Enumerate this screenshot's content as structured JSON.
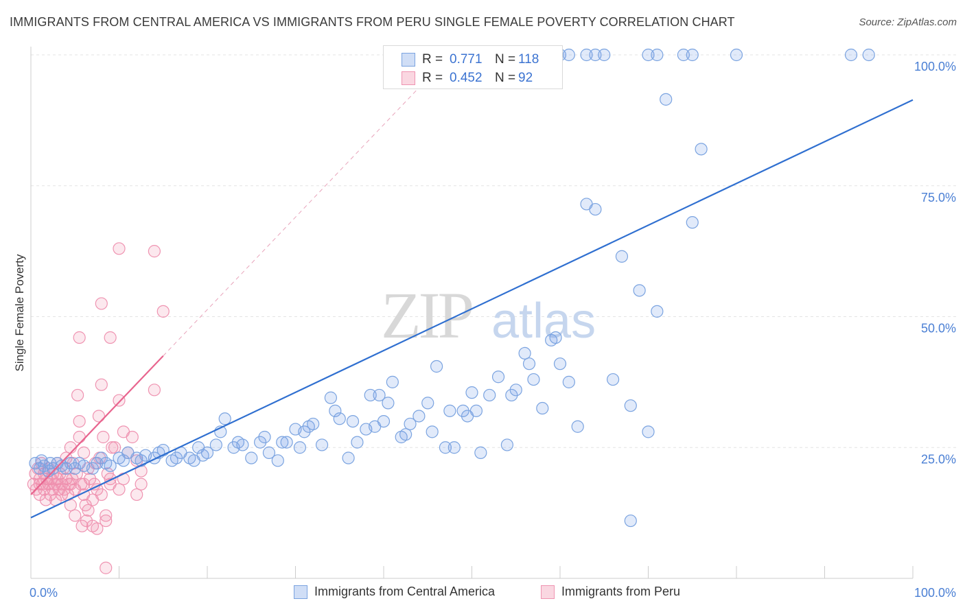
{
  "title": "IMMIGRANTS FROM CENTRAL AMERICA VS IMMIGRANTS FROM PERU SINGLE FEMALE POVERTY CORRELATION CHART",
  "source": "Source: ZipAtlas.com",
  "watermark": {
    "zip": "ZIP",
    "atlas": "atlas"
  },
  "colors": {
    "blue_fill": "rgba(120,160,230,0.22)",
    "blue_stroke": "#7aa3e0",
    "blue_line": "#2f6fd0",
    "pink_fill": "rgba(240,140,170,0.20)",
    "pink_stroke": "#ef93b1",
    "pink_line": "#e8648e",
    "tick_label": "#4a7fd4"
  },
  "legend": {
    "rows": [
      {
        "r_label": "R =",
        "r_value": "0.771",
        "n_label": "N =",
        "n_value": "118"
      },
      {
        "r_label": "R =",
        "r_value": "0.452",
        "n_label": "N =",
        "n_value": "92"
      }
    ]
  },
  "bottom_legend": {
    "blue": "Immigrants from Central America",
    "pink": "Immigrants from Peru"
  },
  "chart_data": {
    "type": "scatter",
    "xlabel": "",
    "ylabel": "Single Female Poverty",
    "xlim": [
      0,
      100
    ],
    "ylim": [
      0,
      100
    ],
    "x_tick_labels": [
      "0.0%",
      "100.0%"
    ],
    "y_tick_labels": [
      "25.0%",
      "50.0%",
      "75.0%",
      "100.0%"
    ],
    "y_ticks": [
      25,
      50,
      75,
      100
    ],
    "grid": true,
    "series": [
      {
        "name": "Immigrants from Central America",
        "color": "blue",
        "r": 0.771,
        "n": 118,
        "trend": {
          "x": [
            0,
            100
          ],
          "y": [
            11.6,
            91.4
          ]
        },
        "points": [
          [
            0.5,
            22
          ],
          [
            1,
            21
          ],
          [
            1.2,
            22.5
          ],
          [
            1.5,
            21.5
          ],
          [
            2,
            20.5
          ],
          [
            2.2,
            22
          ],
          [
            2.5,
            21
          ],
          [
            3,
            22
          ],
          [
            3.5,
            21.5
          ],
          [
            4,
            21
          ],
          [
            4.5,
            22
          ],
          [
            5,
            21
          ],
          [
            5.5,
            22
          ],
          [
            6,
            21.5
          ],
          [
            7,
            21
          ],
          [
            7.5,
            22
          ],
          [
            8,
            23
          ],
          [
            8.5,
            22
          ],
          [
            9,
            21.5
          ],
          [
            10,
            23
          ],
          [
            10.5,
            22.5
          ],
          [
            11,
            24
          ],
          [
            12,
            23
          ],
          [
            12.5,
            22.5
          ],
          [
            13,
            23.5
          ],
          [
            14,
            23
          ],
          [
            14.5,
            24
          ],
          [
            15,
            24.5
          ],
          [
            16,
            22.5
          ],
          [
            16.5,
            23
          ],
          [
            17,
            24
          ],
          [
            18,
            23
          ],
          [
            18.5,
            22.5
          ],
          [
            19,
            25
          ],
          [
            19.5,
            23.5
          ],
          [
            20,
            24
          ],
          [
            21,
            25.5
          ],
          [
            21.5,
            28
          ],
          [
            22,
            30.5
          ],
          [
            23,
            25
          ],
          [
            23.5,
            26
          ],
          [
            24,
            25.5
          ],
          [
            25,
            23
          ],
          [
            26,
            26
          ],
          [
            26.5,
            27
          ],
          [
            27,
            24
          ],
          [
            28,
            22.5
          ],
          [
            28.5,
            26
          ],
          [
            29,
            26
          ],
          [
            30,
            28.5
          ],
          [
            30.5,
            25
          ],
          [
            31,
            28
          ],
          [
            31.5,
            29
          ],
          [
            32,
            29.5
          ],
          [
            33,
            25.5
          ],
          [
            34,
            34.5
          ],
          [
            34.5,
            32
          ],
          [
            35,
            30.5
          ],
          [
            36,
            23
          ],
          [
            36.5,
            30
          ],
          [
            37,
            26
          ],
          [
            38,
            28.5
          ],
          [
            38.5,
            35
          ],
          [
            39,
            29
          ],
          [
            39.5,
            35
          ],
          [
            40,
            30
          ],
          [
            40.5,
            33.5
          ],
          [
            41,
            37.5
          ],
          [
            42,
            27
          ],
          [
            42.5,
            27.5
          ],
          [
            43,
            29.5
          ],
          [
            44,
            31
          ],
          [
            45,
            33.5
          ],
          [
            45.5,
            28
          ],
          [
            46,
            40.5
          ],
          [
            47,
            25
          ],
          [
            47.5,
            32
          ],
          [
            48,
            25
          ],
          [
            49,
            32
          ],
          [
            49.5,
            31
          ],
          [
            50,
            35.5
          ],
          [
            50.5,
            32
          ],
          [
            51,
            24
          ],
          [
            52,
            35
          ],
          [
            53,
            38.5
          ],
          [
            54,
            25.5
          ],
          [
            54.5,
            35
          ],
          [
            55,
            36
          ],
          [
            56,
            43
          ],
          [
            56.5,
            41
          ],
          [
            57,
            38
          ],
          [
            58,
            32.5
          ],
          [
            59,
            45.5
          ],
          [
            59.5,
            46
          ],
          [
            60,
            41
          ],
          [
            61,
            37.5
          ],
          [
            62,
            29
          ],
          [
            63,
            71.5
          ],
          [
            64,
            70.5
          ],
          [
            66,
            38
          ],
          [
            67,
            61.5
          ],
          [
            68,
            33
          ],
          [
            69,
            55
          ],
          [
            70,
            28
          ],
          [
            71,
            51
          ],
          [
            72,
            91.5
          ],
          [
            75,
            68
          ],
          [
            76,
            82
          ],
          [
            53,
            100
          ],
          [
            60,
            100
          ],
          [
            61,
            100
          ],
          [
            63,
            100
          ],
          [
            64,
            100
          ],
          [
            65,
            100
          ],
          [
            70,
            100
          ],
          [
            74,
            100
          ],
          [
            75,
            100
          ],
          [
            80,
            100
          ],
          [
            93,
            100
          ],
          [
            95,
            100
          ],
          [
            71,
            100
          ],
          [
            68,
            11
          ]
        ]
      },
      {
        "name": "Immigrants from Peru",
        "color": "pink",
        "r": 0.452,
        "n": 92,
        "trend": {
          "x": [
            0,
            15
          ],
          "y": [
            16,
            42.5
          ]
        },
        "points": [
          [
            0.3,
            18
          ],
          [
            0.5,
            20
          ],
          [
            0.6,
            17
          ],
          [
            0.8,
            21
          ],
          [
            1,
            19
          ],
          [
            1,
            16
          ],
          [
            1.2,
            22
          ],
          [
            1.3,
            18
          ],
          [
            1.5,
            20
          ],
          [
            1.5,
            17
          ],
          [
            1.7,
            15
          ],
          [
            1.8,
            19
          ],
          [
            2,
            18
          ],
          [
            2,
            21
          ],
          [
            2.2,
            16
          ],
          [
            2.3,
            19
          ],
          [
            2.5,
            17
          ],
          [
            2.5,
            20
          ],
          [
            2.7,
            18
          ],
          [
            2.8,
            15
          ],
          [
            3,
            19
          ],
          [
            3,
            22
          ],
          [
            3.2,
            17
          ],
          [
            3.3,
            20
          ],
          [
            3.5,
            16
          ],
          [
            3.5,
            18
          ],
          [
            3.7,
            21
          ],
          [
            3.8,
            17
          ],
          [
            4,
            19
          ],
          [
            4,
            23
          ],
          [
            4.2,
            16
          ],
          [
            4.3,
            18
          ],
          [
            4.5,
            25
          ],
          [
            4.5,
            14
          ],
          [
            4.7,
            19
          ],
          [
            4.8,
            22
          ],
          [
            5,
            17
          ],
          [
            5,
            12
          ],
          [
            5.2,
            20
          ],
          [
            5.3,
            35
          ],
          [
            5.5,
            30
          ],
          [
            5.5,
            27
          ],
          [
            5.7,
            18
          ],
          [
            5.8,
            10
          ],
          [
            6,
            24
          ],
          [
            6,
            16
          ],
          [
            6.2,
            14
          ],
          [
            6.3,
            11
          ],
          [
            6.5,
            21
          ],
          [
            6.5,
            13
          ],
          [
            6.7,
            19
          ],
          [
            7,
            15
          ],
          [
            7,
            10
          ],
          [
            7.2,
            18
          ],
          [
            7.3,
            22
          ],
          [
            7.5,
            17
          ],
          [
            7.5,
            9.5
          ],
          [
            7.7,
            31
          ],
          [
            7.8,
            23
          ],
          [
            8,
            52.5
          ],
          [
            8,
            37
          ],
          [
            8,
            16
          ],
          [
            8.2,
            27
          ],
          [
            8.5,
            11
          ],
          [
            8.5,
            12
          ],
          [
            8.5,
            2
          ],
          [
            8.7,
            20
          ],
          [
            9,
            46
          ],
          [
            9,
            19
          ],
          [
            9.2,
            25
          ],
          [
            9.5,
            25
          ],
          [
            10,
            34
          ],
          [
            10,
            17
          ],
          [
            10,
            63
          ],
          [
            10.5,
            28
          ],
          [
            10.5,
            19
          ],
          [
            11,
            24
          ],
          [
            11.5,
            27
          ],
          [
            12,
            22.5
          ],
          [
            12,
            16
          ],
          [
            12.5,
            20.5
          ],
          [
            12.5,
            18
          ],
          [
            14,
            62.5
          ],
          [
            14,
            36
          ],
          [
            15,
            51
          ],
          [
            5.5,
            46
          ],
          [
            9,
            18
          ],
          [
            4.5,
            18
          ],
          [
            3,
            18
          ],
          [
            2,
            18
          ],
          [
            1,
            18
          ],
          [
            6,
            18
          ]
        ]
      }
    ]
  }
}
